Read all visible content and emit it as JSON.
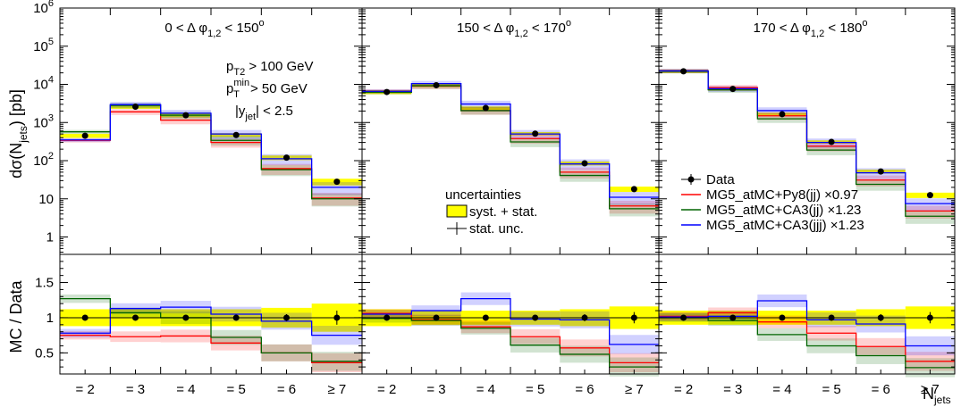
{
  "chart_data": {
    "type": "line",
    "categories": [
      "= 2",
      "= 3",
      "= 4",
      "= 5",
      "= 6",
      "≥ 7"
    ],
    "ylabel": "dσ(N",
    "ylabel_sub": "jets",
    "ylabel_unit": ") [pb]",
    "ratio_ylabel": "MC / Data",
    "xlabel": "N",
    "xlabel_sub": "jets",
    "ylim": [
      0.35,
      1000000
    ],
    "ratio_ylim": [
      0.2,
      1.9
    ],
    "y_scale": "log",
    "y_tick_labels": [
      {
        "v": 1000000,
        "base": "10",
        "exp": "6"
      },
      {
        "v": 100000,
        "base": "10",
        "exp": "5"
      },
      {
        "v": 10000,
        "base": "10",
        "exp": "4"
      },
      {
        "v": 1000,
        "base": "10",
        "exp": "3"
      },
      {
        "v": 100,
        "base": "10",
        "exp": "2"
      },
      {
        "v": 10,
        "base": "10",
        "exp": ""
      },
      {
        "v": 1,
        "base": "1",
        "exp": ""
      }
    ],
    "ratio_tick_labels": [
      {
        "v": 1.5,
        "t": "1.5"
      },
      {
        "v": 1.0,
        "t": "1"
      },
      {
        "v": 0.5,
        "t": "0.5"
      }
    ],
    "colors": {
      "data": "#000000",
      "py8": "#ff0000",
      "ca3jj": "#006400",
      "ca3jjj": "#0000ff",
      "syst": "#ffff00"
    },
    "cuts": {
      "line1_main": "p",
      "line1_sub": "T2",
      "line1_rest": " > 100 GeV",
      "line2_main": "p",
      "line2_sup": "min",
      "line2_sub": "T",
      "line2_rest": " >  50 GeV",
      "line3_main": "|y",
      "line3_sub": "jet",
      "line3_rest": "| <  2.5"
    },
    "uncertainty_legend": {
      "title": "uncertainties",
      "syst": "syst. + stat.",
      "stat": "stat. unc."
    },
    "legend": [
      {
        "key": "data",
        "label": "Data"
      },
      {
        "key": "py8",
        "label": "MG5_atMC+Py8(jj) ×0.97"
      },
      {
        "key": "ca3jj",
        "label": "MG5_atMC+CA3(jj) ×1.23"
      },
      {
        "key": "ca3jjj",
        "label": "MG5_atMC+CA3(jjj) ×1.23"
      }
    ],
    "panels": [
      {
        "title_pre": "0 < Δ φ",
        "title_sub": "1,2",
        "title_post": " < 150",
        "title_sup": "o",
        "data": [
          450,
          2600,
          1550,
          470,
          120,
          28
        ],
        "stat_err": [
          0.03,
          0.03,
          0.03,
          0.03,
          0.05,
          0.1
        ],
        "syst_band": [
          0.12,
          0.12,
          0.12,
          0.12,
          0.14,
          0.2
        ],
        "series": [
          {
            "key": "py8",
            "values": [
              340,
              1900,
              1150,
              300,
              62,
              10.5
            ]
          },
          {
            "key": "ca3jj",
            "values": [
              570,
              2800,
              1550,
              340,
              58,
              10
            ]
          },
          {
            "key": "ca3jjj",
            "values": [
              350,
              2950,
              1750,
              500,
              112,
              20
            ]
          }
        ],
        "ratios": [
          {
            "key": "py8",
            "values": [
              0.75,
              0.73,
              0.74,
              0.64,
              0.5,
              0.36
            ]
          },
          {
            "key": "ca3jj",
            "values": [
              1.27,
              1.07,
              1.0,
              0.72,
              0.5,
              0.38
            ]
          },
          {
            "key": "ca3jjj",
            "values": [
              0.78,
              1.13,
              1.15,
              1.05,
              0.95,
              0.75
            ]
          }
        ]
      },
      {
        "title_pre": "150 < Δ φ",
        "title_sub": "1,2",
        "title_post": " < 170",
        "title_sup": "o",
        "data": [
          6300,
          9500,
          2400,
          510,
          85,
          18
        ],
        "stat_err": [
          0.02,
          0.02,
          0.03,
          0.03,
          0.05,
          0.08
        ],
        "syst_band": [
          0.12,
          0.1,
          0.1,
          0.1,
          0.12,
          0.16
        ],
        "series": [
          {
            "key": "py8",
            "values": [
              6600,
              9000,
              2050,
              380,
              50,
              6.5
            ]
          },
          {
            "key": "ca3jj",
            "values": [
              6200,
              9200,
              2050,
              310,
              41,
              5.5
            ]
          },
          {
            "key": "ca3jjj",
            "values": [
              6600,
              10500,
              3050,
              500,
              82,
              11
            ]
          }
        ],
        "ratios": [
          {
            "key": "py8",
            "values": [
              1.06,
              0.97,
              0.87,
              0.73,
              0.57,
              0.36
            ]
          },
          {
            "key": "ca3jj",
            "values": [
              0.99,
              0.96,
              0.85,
              0.61,
              0.48,
              0.3
            ]
          },
          {
            "key": "ca3jjj",
            "values": [
              1.05,
              1.1,
              1.27,
              0.98,
              0.97,
              0.62
            ]
          }
        ]
      },
      {
        "title_pre": "170 < Δ φ",
        "title_sub": "1,2",
        "title_post": " < 180",
        "title_sup": "o",
        "data": [
          22000,
          7600,
          1650,
          310,
          52,
          12.5
        ],
        "stat_err": [
          0.02,
          0.02,
          0.03,
          0.03,
          0.05,
          0.08
        ],
        "syst_band": [
          0.1,
          0.1,
          0.1,
          0.1,
          0.12,
          0.16
        ],
        "series": [
          {
            "key": "py8",
            "values": [
              22500,
              8200,
              1500,
              240,
              31,
              4.8
            ]
          },
          {
            "key": "ca3jj",
            "values": [
              22000,
              7200,
              1250,
              190,
              24,
              3.5
            ]
          },
          {
            "key": "ca3jjj",
            "values": [
              22500,
              7700,
              2050,
              300,
              48,
              7.5
            ]
          }
        ],
        "ratios": [
          {
            "key": "py8",
            "values": [
              1.02,
              1.07,
              0.94,
              0.78,
              0.59,
              0.38
            ]
          },
          {
            "key": "ca3jj",
            "values": [
              1.0,
              0.96,
              0.76,
              0.6,
              0.46,
              0.29
            ]
          },
          {
            "key": "ca3jjj",
            "values": [
              1.01,
              1.02,
              1.24,
              0.97,
              0.91,
              0.6
            ]
          }
        ]
      }
    ]
  }
}
